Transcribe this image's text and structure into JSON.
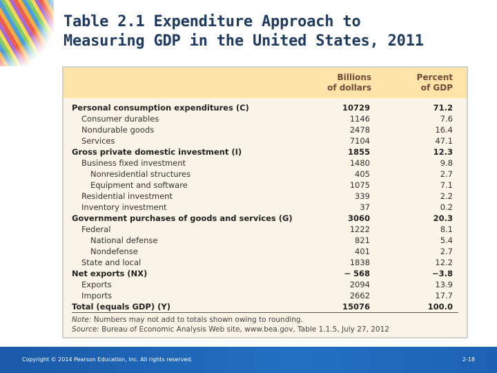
{
  "slide": {
    "title_line1": "Table 2.1  Expenditure Approach to",
    "title_line2": "Measuring GDP in the United States, 2011"
  },
  "table": {
    "headers": {
      "billions_line1": "Billions",
      "billions_line2": "of dollars",
      "percent_line1": "Percent",
      "percent_line2": "of GDP"
    },
    "rows": [
      {
        "label": "Personal consumption expenditures (C)",
        "value": "10729",
        "percent": "71.2",
        "level": 0
      },
      {
        "label": "Consumer durables",
        "value": "1146",
        "percent": "7.6",
        "level": 1
      },
      {
        "label": "Nondurable goods",
        "value": "2478",
        "percent": "16.4",
        "level": 1
      },
      {
        "label": "Services",
        "value": "7104",
        "percent": "47.1",
        "level": 1
      },
      {
        "label": "Gross private domestic investment (I)",
        "value": "1855",
        "percent": "12.3",
        "level": 0
      },
      {
        "label": "Business fixed investment",
        "value": "1480",
        "percent": "9.8",
        "level": 1
      },
      {
        "label": "Nonresidential structures",
        "value": "405",
        "percent": "2.7",
        "level": 2
      },
      {
        "label": "Equipment and software",
        "value": "1075",
        "percent": "7.1",
        "level": 2
      },
      {
        "label": "Residential investment",
        "value": "339",
        "percent": "2.2",
        "level": 1
      },
      {
        "label": "Inventory investment",
        "value": "37",
        "percent": "0.2",
        "level": 1
      },
      {
        "label": "Government purchases of goods and services (G)",
        "value": "3060",
        "percent": "20.3",
        "level": 0
      },
      {
        "label": "Federal",
        "value": "1222",
        "percent": "8.1",
        "level": 1
      },
      {
        "label": "National defense",
        "value": "821",
        "percent": "5.4",
        "level": 2
      },
      {
        "label": "Nondefense",
        "value": "401",
        "percent": "2.7",
        "level": 2
      },
      {
        "label": "State and local",
        "value": "1838",
        "percent": "12.2",
        "level": 1
      },
      {
        "label": "Net exports (NX)",
        "value": "− 568",
        "percent": "−3.8",
        "level": 0
      },
      {
        "label": "Exports",
        "value": "2094",
        "percent": "13.9",
        "level": 1
      },
      {
        "label": "Imports",
        "value": "2662",
        "percent": "17.7",
        "level": 1
      },
      {
        "label": "Total (equals GDP) (Y)",
        "value": "15076",
        "percent": "100.0",
        "level": 0
      }
    ],
    "note_label": "Note:",
    "note_text": " Numbers may not add to totals shown owing to rounding.",
    "source_label": "Source:",
    "source_text": " Bureau of Economic Analysis Web site, www.bea.gov, Table 1.1.5, July 27, 2012"
  },
  "footer": {
    "copyright": "Copyright © 2014 Pearson Education, Inc. All rights reserved.",
    "slide_number": "2-18"
  }
}
